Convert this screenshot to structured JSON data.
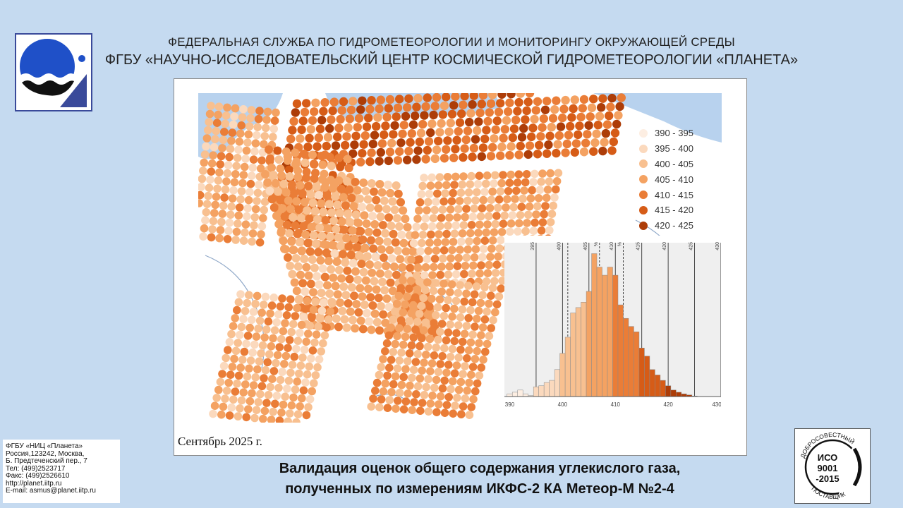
{
  "header": {
    "line1": "ФЕДЕРАЛЬНАЯ СЛУЖБА ПО ГИДРОМЕТЕОРОЛОГИИ И МОНИТОРИНГУ ОКРУЖАЮЩЕЙ СРЕДЫ",
    "line2": "ФГБУ «НАУЧНО-ИССЛЕДОВАТЕЛЬСКИЙ ЦЕНТР КОСМИЧЕСКОЙ ГИДРОМЕТЕОРОЛОГИИ «ПЛАНЕТА»"
  },
  "map": {
    "date_caption": "Сентябрь 2025 г.",
    "legend": [
      {
        "label": "390 - 395",
        "color": "#fdeee2"
      },
      {
        "label": "395 - 400",
        "color": "#fbd9bd"
      },
      {
        "label": "400 - 405",
        "color": "#f8c090"
      },
      {
        "label": "405 - 410",
        "color": "#f4a262"
      },
      {
        "label": "410 - 415",
        "color": "#ea7d37"
      },
      {
        "label": "415 - 420",
        "color": "#d65c17"
      },
      {
        "label": "420 - 425",
        "color": "#ad3d08"
      }
    ]
  },
  "chart_data": {
    "type": "bar",
    "title": "",
    "xlabel": "",
    "ylabel": "",
    "xlim": [
      389,
      430
    ],
    "top_ticks": [
      "395",
      "400",
      "405",
      "%",
      "410",
      "%",
      "415",
      "420",
      "425",
      "430"
    ],
    "bottom_ticks": [
      "390",
      "400",
      "410",
      "420",
      "430"
    ],
    "bins": [
      389.5,
      390.5,
      391.5,
      392.5,
      393.5,
      394.5,
      395.5,
      396.5,
      397.5,
      398.5,
      399.5,
      400.5,
      401.5,
      402.5,
      403.5,
      404.5,
      405.5,
      406.5,
      407.5,
      408.5,
      409.5,
      410.5,
      411.5,
      412.5,
      413.5,
      414.5,
      415.5,
      416.5,
      417.5,
      418.5,
      419.5,
      420.5,
      421.5,
      422.5,
      423.5,
      424.5
    ],
    "values": [
      0.5,
      0.8,
      1.2,
      0.5,
      0.2,
      1.8,
      2.0,
      2.6,
      3.0,
      5.0,
      8.0,
      11.0,
      15.5,
      16.5,
      17.5,
      19.5,
      26.5,
      24.0,
      22.5,
      24.0,
      22.5,
      17.0,
      14.5,
      13.0,
      12.0,
      9.0,
      7.5,
      5.0,
      4.0,
      3.0,
      2.0,
      1.2,
      0.8,
      0.5,
      0.3,
      0.1
    ],
    "ylim": [
      0,
      28
    ]
  },
  "org_info": [
    "ФГБУ «НИЦ «Планета»",
    "Россия,123242, Москва,",
    "Б. Предтеченский пер., 7",
    "Тел:   (499)2523717",
    "Факс:  (499)2526610",
    "http://planet.iitp.ru",
    "E-mail: asmus@planet.iitp.ru"
  ],
  "title": {
    "line1": "Валидация оценок общего содержания углекислого газа,",
    "line2": "полученных по измерениям ИКФС-2 КА Метеор-М №2-4"
  },
  "iso_badge": {
    "top": "ДОБРОСОВЕСТНЫЙ",
    "bottom": "ПОСТАВЩИК",
    "line1": "ИСО",
    "line2": "9001",
    "line3": "-2015"
  }
}
